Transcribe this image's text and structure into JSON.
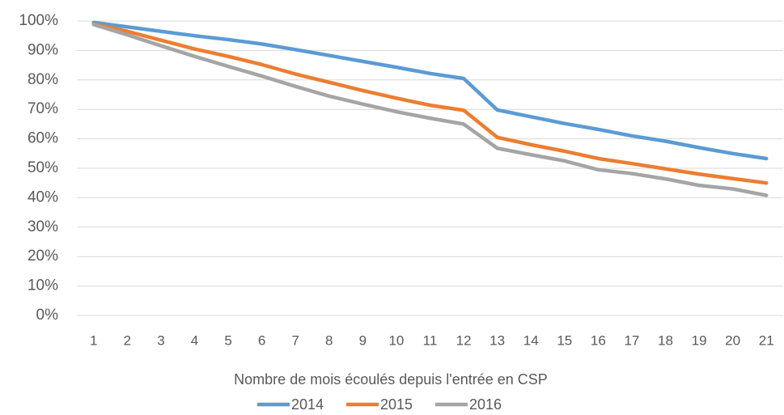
{
  "chart_data": {
    "type": "line",
    "x_label": "Nombre de mois écoulés depuis l'entrée en CSP",
    "categories": [
      "1",
      "2",
      "3",
      "4",
      "5",
      "6",
      "7",
      "8",
      "9",
      "10",
      "11",
      "12",
      "13",
      "14",
      "15",
      "16",
      "17",
      "18",
      "19",
      "20",
      "21"
    ],
    "series": [
      {
        "name": "2014",
        "color": "#5b9bd5",
        "values": [
          99.5,
          98,
          96.5,
          95,
          93.7,
          92.2,
          90.3,
          88.3,
          86.3,
          84.3,
          82.2,
          80.5,
          69.8,
          67.5,
          65.2,
          63.2,
          61,
          59.2,
          57,
          55,
          53.3
        ]
      },
      {
        "name": "2015",
        "color": "#ed7d31",
        "values": [
          99,
          96.5,
          93.5,
          90.5,
          88,
          85.2,
          82,
          79.2,
          76.4,
          73.8,
          71.4,
          69.7,
          60.5,
          58,
          55.8,
          53.3,
          51.6,
          49.8,
          48,
          46.5,
          45
        ]
      },
      {
        "name": "2016",
        "color": "#a5a5a5",
        "values": [
          98.8,
          95.3,
          91.6,
          88,
          84.6,
          81.3,
          77.8,
          74.5,
          71.8,
          69.2,
          67,
          65,
          56.8,
          54.6,
          52.5,
          49.5,
          48.2,
          46.4,
          44.2,
          43,
          40.8
        ]
      }
    ],
    "ylim": [
      0,
      100
    ],
    "yticks": [
      {
        "value": 0,
        "label": "0%"
      },
      {
        "value": 10,
        "label": "10%"
      },
      {
        "value": 20,
        "label": "20%"
      },
      {
        "value": 30,
        "label": "30%"
      },
      {
        "value": 40,
        "label": "40%"
      },
      {
        "value": 50,
        "label": "50%"
      },
      {
        "value": 60,
        "label": "60%"
      },
      {
        "value": 70,
        "label": "70%"
      },
      {
        "value": 80,
        "label": "80%"
      },
      {
        "value": 90,
        "label": "90%"
      },
      {
        "value": 100,
        "label": "100%"
      }
    ],
    "grid": true,
    "legend": "bottom"
  }
}
